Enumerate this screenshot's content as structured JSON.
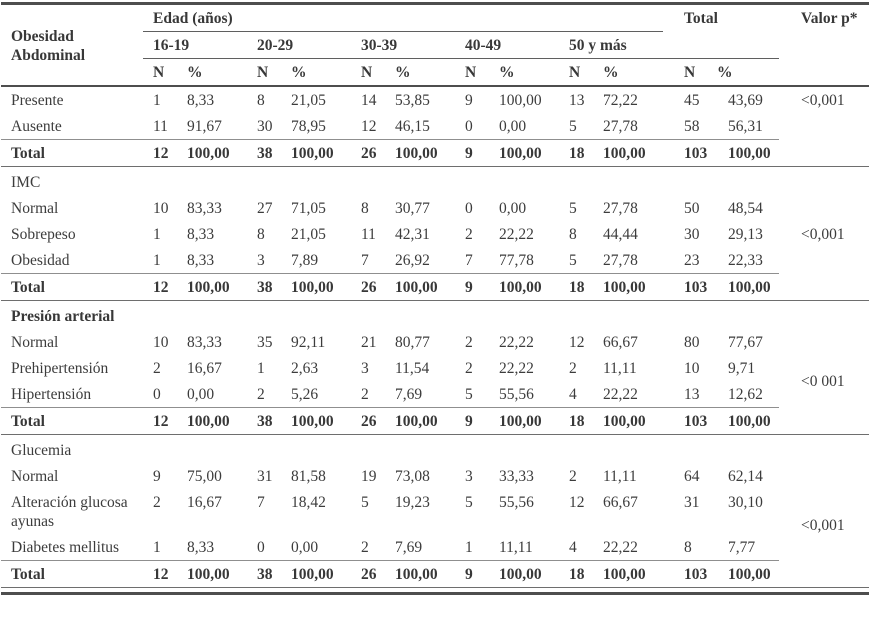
{
  "table": {
    "header": {
      "row_header": "Obesidad Abdominal",
      "age_header": "Edad (años)",
      "age_groups": [
        "16-19",
        "20-29",
        "30-39",
        "40-49",
        "50 y más"
      ],
      "n": "N",
      "pct": "%",
      "total": "Total",
      "p": "Valor p*"
    },
    "total_label": "Total",
    "sections": [
      {
        "title": "",
        "rows": [
          {
            "label": "Presente",
            "v": [
              "1",
              "8,33",
              "8",
              "21,05",
              "14",
              "53,85",
              "9",
              "100,00",
              "13",
              "72,22",
              "45",
              "43,69"
            ]
          },
          {
            "label": "Ausente",
            "v": [
              "11",
              "91,67",
              "30",
              "78,95",
              "12",
              "46,15",
              "0",
              "0,00",
              "5",
              "27,78",
              "58",
              "56,31"
            ]
          }
        ],
        "total": [
          "12",
          "100,00",
          "38",
          "100,00",
          "26",
          "100,00",
          "9",
          "100,00",
          "18",
          "100,00",
          "103",
          "100,00"
        ],
        "p": "<0,001"
      },
      {
        "title": "IMC",
        "rows": [
          {
            "label": "Normal",
            "v": [
              "10",
              "83,33",
              "27",
              "71,05",
              "8",
              "30,77",
              "0",
              "0,00",
              "5",
              "27,78",
              "50",
              "48,54"
            ]
          },
          {
            "label": "Sobrepeso",
            "v": [
              "1",
              "8,33",
              "8",
              "21,05",
              "11",
              "42,31",
              "2",
              "22,22",
              "8",
              "44,44",
              "30",
              "29,13"
            ]
          },
          {
            "label": "Obesidad",
            "v": [
              "1",
              "8,33",
              "3",
              "7,89",
              "7",
              "26,92",
              "7",
              "77,78",
              "5",
              "27,78",
              "23",
              "22,33"
            ]
          }
        ],
        "total": [
          "12",
          "100,00",
          "38",
          "100,00",
          "26",
          "100,00",
          "9",
          "100,00",
          "18",
          "100,00",
          "103",
          "100,00"
        ],
        "p": "<0,001"
      },
      {
        "title": "Presión arterial",
        "rows": [
          {
            "label": "Normal",
            "v": [
              "10",
              "83,33",
              "35",
              "92,11",
              "21",
              "80,77",
              "2",
              "22,22",
              "12",
              "66,67",
              "80",
              "77,67"
            ]
          },
          {
            "label": "Prehipertensión",
            "v": [
              "2",
              "16,67",
              "1",
              "2,63",
              "3",
              "11,54",
              "2",
              "22,22",
              "2",
              "11,11",
              "10",
              "9,71"
            ]
          },
          {
            "label": "Hipertensión",
            "v": [
              "0",
              "0,00",
              "2",
              "5,26",
              "2",
              "7,69",
              "5",
              "55,56",
              "4",
              "22,22",
              "13",
              "12,62"
            ]
          }
        ],
        "total": [
          "12",
          "100,00",
          "38",
          "100,00",
          "26",
          "100,00",
          "9",
          "100,00",
          "18",
          "100,00",
          "103",
          "100,00"
        ],
        "p": "<0 001"
      },
      {
        "title": "Glucemia",
        "rows": [
          {
            "label": "Normal",
            "v": [
              "9",
              "75,00",
              "31",
              "81,58",
              "19",
              "73,08",
              "3",
              "33,33",
              "2",
              "11,11",
              "64",
              "62,14"
            ]
          },
          {
            "label": "Alteración glucosa ayunas",
            "v": [
              "2",
              "16,67",
              "7",
              "18,42",
              "5",
              "19,23",
              "5",
              "55,56",
              "12",
              "66,67",
              "31",
              "30,10"
            ]
          },
          {
            "label": "Diabetes mellitus",
            "v": [
              "1",
              "8,33",
              "0",
              "0,00",
              "2",
              "7,69",
              "1",
              "11,11",
              "4",
              "22,22",
              "8",
              "7,77"
            ]
          }
        ],
        "total": [
          "12",
          "100,00",
          "38",
          "100,00",
          "26",
          "100,00",
          "9",
          "100,00",
          "18",
          "100,00",
          "103",
          "100,00"
        ],
        "p": "<0,001"
      }
    ]
  }
}
